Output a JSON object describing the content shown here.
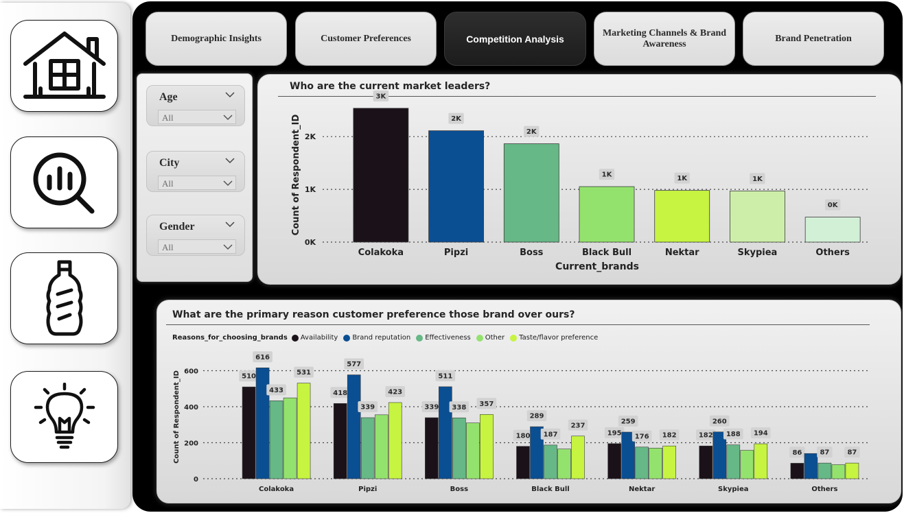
{
  "nav": {
    "items": [
      {
        "icon": "home-icon"
      },
      {
        "icon": "analytics-search-icon"
      },
      {
        "icon": "bottle-icon"
      },
      {
        "icon": "lightbulb-icon"
      }
    ]
  },
  "tabs": [
    {
      "label": "Demographic Insights",
      "active": false
    },
    {
      "label": "Customer Preferences",
      "active": false
    },
    {
      "label": "Competition Analysis",
      "active": true
    },
    {
      "label": "Marketing Channels & Brand Awareness",
      "active": false
    },
    {
      "label": "Brand Penetration",
      "active": false
    }
  ],
  "filters": {
    "age": {
      "label": "Age",
      "value": "All"
    },
    "city": {
      "label": "City",
      "value": "All"
    },
    "gender": {
      "label": "Gender",
      "value": "All"
    }
  },
  "colors": {
    "brand_bars": [
      "#1b1219",
      "#0b4f93",
      "#66b886",
      "#94e26e",
      "#c6f441",
      "#cdeea8",
      "#d2f0d6"
    ],
    "series": [
      "#1b1219",
      "#0b4f93",
      "#66b886",
      "#94e26e",
      "#c6f441"
    ]
  },
  "chart_data": [
    {
      "type": "bar",
      "title": "Who are the current market leaders?",
      "xlabel": "Current_brands",
      "ylabel": "Count of Respondent_ID",
      "categories": [
        "Colakoka",
        "Pipzi",
        "Boss",
        "Black Bull",
        "Nektar",
        "Skypiea",
        "Others"
      ],
      "values": [
        2538,
        2112,
        1865,
        1052,
        980,
        970,
        473
      ],
      "data_labels": [
        "3K",
        "2K",
        "2K",
        "1K",
        "1K",
        "1K",
        "0K"
      ],
      "yticks": [
        0,
        1000,
        2000
      ],
      "ytick_labels": [
        "0K",
        "1K",
        "2K"
      ],
      "ylim": [
        0,
        2900
      ],
      "grid": true
    },
    {
      "type": "bar",
      "title": "What are the primary reason customer preference those brand over ours?",
      "xlabel": "",
      "ylabel": "Count of Respondent_ID",
      "legend_title": "Reasons_for_choosing_brands",
      "legend_position": "top-left",
      "categories": [
        "Colakoka",
        "Pipzi",
        "Boss",
        "Black Bull",
        "Nektar",
        "Skypiea",
        "Others"
      ],
      "series": [
        {
          "name": "Availability",
          "values": [
            510,
            418,
            339,
            180,
            195,
            182,
            86
          ],
          "labels": [
            "510",
            "418",
            "339",
            "180",
            "195",
            "182",
            "86"
          ]
        },
        {
          "name": "Brand reputation",
          "values": [
            616,
            577,
            511,
            289,
            259,
            260,
            140
          ],
          "labels": [
            "616",
            "577",
            "511",
            "289",
            "259",
            "260",
            ""
          ]
        },
        {
          "name": "Effectiveness",
          "values": [
            433,
            339,
            338,
            187,
            176,
            188,
            87
          ],
          "labels": [
            "433",
            "339",
            "338",
            "187",
            "176",
            "188",
            "87"
          ]
        },
        {
          "name": "Other",
          "values": [
            449,
            355,
            310,
            165,
            170,
            158,
            78
          ],
          "labels": [
            "",
            "",
            "",
            "",
            "",
            "",
            ""
          ]
        },
        {
          "name": "Taste/flavor preference",
          "values": [
            531,
            423,
            357,
            237,
            182,
            194,
            87
          ],
          "labels": [
            "531",
            "423",
            "357",
            "237",
            "182",
            "194",
            "87"
          ]
        }
      ],
      "yticks": [
        0,
        200,
        400,
        600
      ],
      "ytick_labels": [
        "0",
        "200",
        "400",
        "600"
      ],
      "ylim": [
        0,
        640
      ],
      "grid": true
    }
  ]
}
